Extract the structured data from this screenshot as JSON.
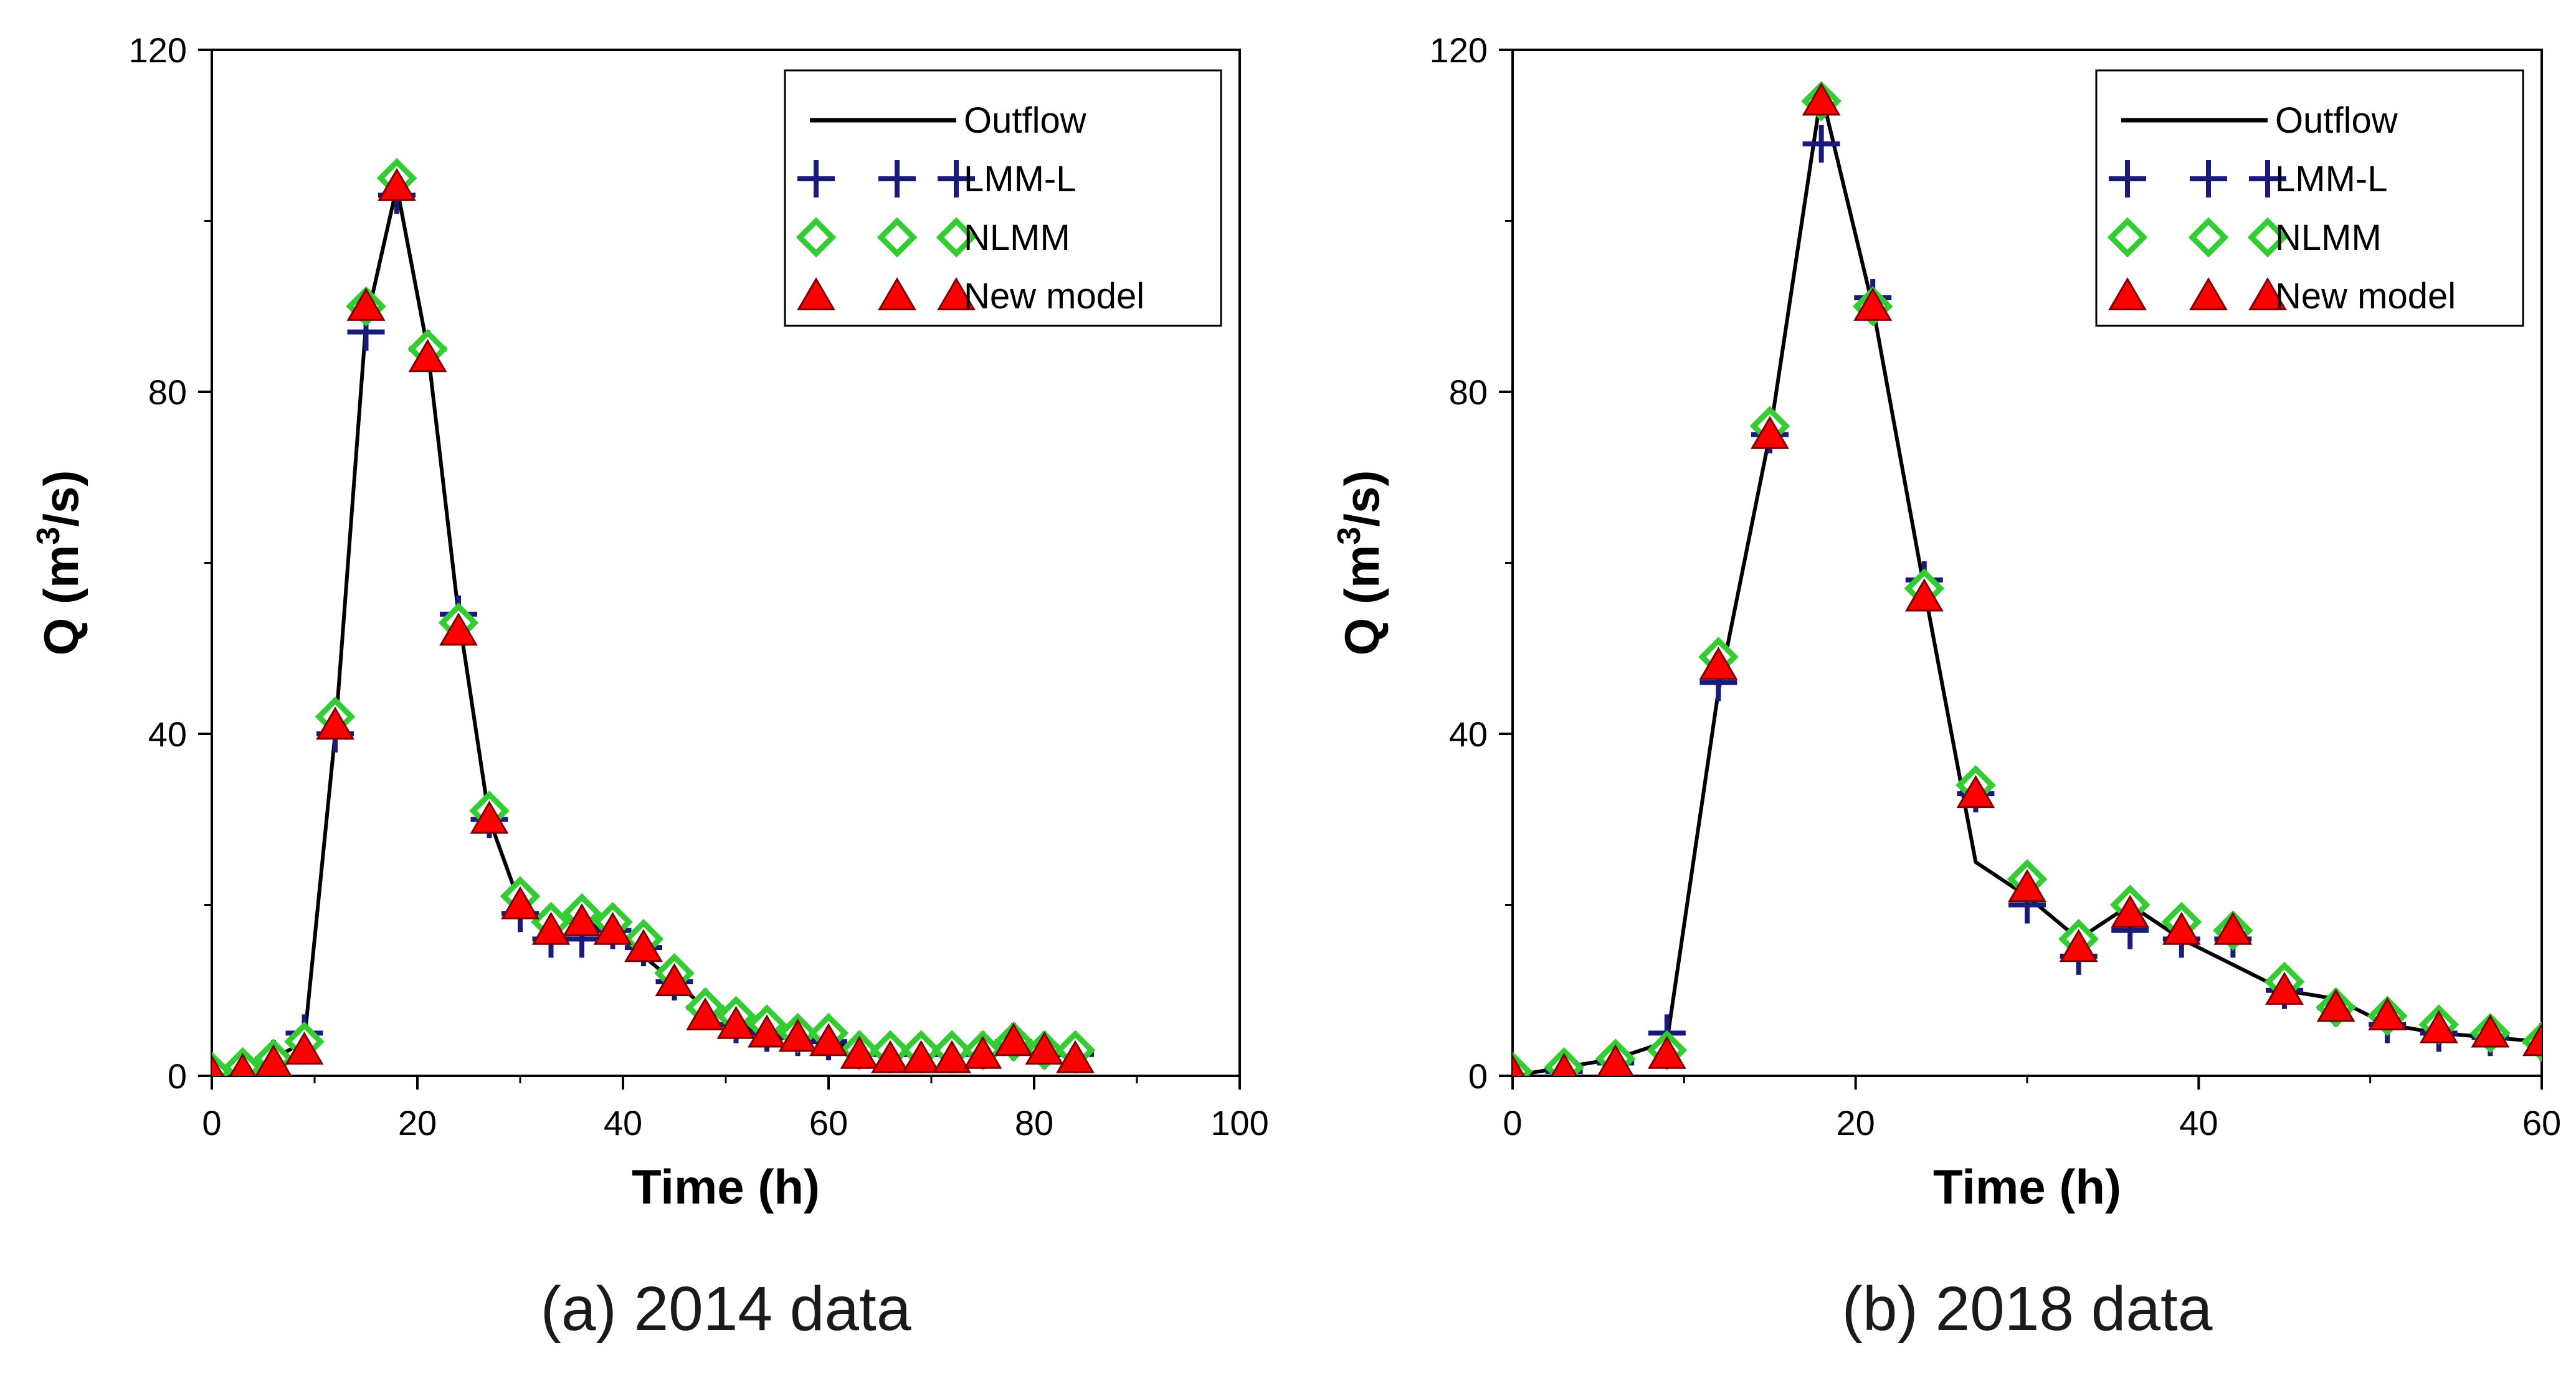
{
  "chart_data": [
    {
      "type": "line",
      "caption": "(a) 2014 data",
      "xlabel": "Time (h)",
      "ylabel_main": "Q (m",
      "ylabel_sup": "3",
      "ylabel_tail": "/s)",
      "xlim": [
        0,
        100
      ],
      "ylim": [
        0,
        120
      ],
      "xticks": [
        0,
        20,
        40,
        60,
        80,
        100
      ],
      "yticks": [
        0,
        40,
        80,
        120
      ],
      "grid": false,
      "legend_position": "top-right",
      "series": [
        {
          "name": "Outflow",
          "style": "line",
          "color": "#000000",
          "x": [
            0,
            3,
            6,
            9,
            12,
            15,
            18,
            21,
            24,
            27,
            30,
            33,
            36,
            39,
            42,
            45,
            48,
            51,
            54,
            57,
            60,
            63,
            66,
            69,
            72,
            75,
            78,
            81,
            84
          ],
          "y": [
            0,
            0.5,
            2,
            4,
            40,
            88,
            104,
            85,
            54,
            30,
            20,
            18,
            18,
            17,
            14,
            11,
            8,
            6,
            5,
            4.5,
            4,
            3,
            2.5,
            2.5,
            3,
            3.5,
            4,
            3,
            2.5
          ]
        },
        {
          "name": "LMM-L",
          "style": "plus",
          "color": "#1a1a7a",
          "x": [
            0,
            3,
            6,
            9,
            12,
            15,
            18,
            21,
            24,
            27,
            30,
            33,
            36,
            39,
            42,
            45,
            48,
            51,
            54,
            57,
            60,
            63,
            66,
            69,
            72,
            75,
            78,
            81,
            84
          ],
          "y": [
            0.3,
            0.5,
            2,
            5,
            40,
            87,
            103,
            85,
            54,
            30,
            19,
            16,
            16,
            17,
            15,
            11,
            8,
            6,
            5,
            4.5,
            4,
            3,
            2.5,
            2.5,
            2.5,
            3,
            4,
            3,
            2.5
          ]
        },
        {
          "name": "NLMM",
          "style": "diamond",
          "color": "#33cc33",
          "x": [
            0,
            3,
            6,
            9,
            12,
            15,
            18,
            21,
            24,
            27,
            30,
            33,
            36,
            39,
            42,
            45,
            48,
            51,
            54,
            57,
            60,
            63,
            66,
            69,
            72,
            75,
            78,
            81,
            84
          ],
          "y": [
            0.5,
            1,
            2,
            4,
            42,
            90,
            105,
            85,
            53,
            31,
            21,
            18,
            19,
            18,
            16,
            12,
            8,
            7,
            6,
            5,
            5,
            3,
            3,
            3,
            3,
            3,
            4,
            3,
            3
          ]
        },
        {
          "name": "New model",
          "style": "triangle",
          "color": "#ff0000",
          "x": [
            0,
            3,
            6,
            9,
            12,
            15,
            18,
            21,
            24,
            27,
            30,
            33,
            36,
            39,
            42,
            45,
            48,
            51,
            54,
            57,
            60,
            63,
            66,
            69,
            72,
            75,
            78,
            81,
            84
          ],
          "y": [
            0.3,
            0.5,
            1.5,
            3,
            41,
            90,
            104,
            84,
            52,
            30,
            20,
            17,
            18,
            17,
            15,
            11,
            7,
            6,
            5,
            4.5,
            4,
            2.5,
            2,
            2,
            2,
            2.5,
            4,
            3,
            2
          ]
        }
      ]
    },
    {
      "type": "line",
      "caption": "(b) 2018 data",
      "xlabel": "Time (h)",
      "ylabel_main": "Q (m",
      "ylabel_sup": "3",
      "ylabel_tail": "/s)",
      "xlim": [
        0,
        60
      ],
      "ylim": [
        0,
        120
      ],
      "xticks": [
        0,
        20,
        40,
        60
      ],
      "yticks": [
        0,
        40,
        80,
        120
      ],
      "grid": false,
      "legend_position": "top-right",
      "series": [
        {
          "name": "Outflow",
          "style": "line",
          "color": "#000000",
          "x": [
            0,
            3,
            6,
            9,
            12,
            15,
            18,
            21,
            24,
            27,
            30,
            33,
            36,
            39,
            42,
            45,
            48,
            51,
            54,
            57,
            60
          ],
          "y": [
            0,
            1,
            2,
            4,
            45,
            75,
            115,
            90,
            57,
            25,
            21,
            16,
            20,
            16,
            13,
            10,
            9,
            6,
            5,
            4.5,
            4
          ]
        },
        {
          "name": "LMM-L",
          "style": "plus",
          "color": "#1a1a7a",
          "x": [
            0,
            3,
            6,
            9,
            12,
            15,
            18,
            21,
            24,
            27,
            30,
            33,
            36,
            39,
            42,
            45,
            48,
            51,
            54,
            57,
            60
          ],
          "y": [
            0.3,
            0.5,
            1.5,
            5,
            46,
            75,
            109,
            91,
            58,
            33,
            20,
            14,
            17,
            16,
            16,
            10,
            8,
            6,
            5,
            4.5,
            4
          ]
        },
        {
          "name": "NLMM",
          "style": "diamond",
          "color": "#33cc33",
          "x": [
            0,
            3,
            6,
            9,
            12,
            15,
            18,
            21,
            24,
            27,
            30,
            33,
            36,
            39,
            42,
            45,
            48,
            51,
            54,
            57,
            60
          ],
          "y": [
            0.5,
            1,
            2,
            3,
            49,
            76,
            114,
            90,
            57,
            34,
            23,
            16,
            20,
            18,
            17,
            11,
            8,
            7,
            6,
            5,
            4
          ]
        },
        {
          "name": "New model",
          "style": "triangle",
          "color": "#ff0000",
          "x": [
            0,
            3,
            6,
            9,
            12,
            15,
            18,
            21,
            24,
            27,
            30,
            33,
            36,
            39,
            42,
            45,
            48,
            51,
            54,
            57,
            60
          ],
          "y": [
            0.3,
            0.5,
            1.5,
            2.5,
            48,
            75,
            114,
            90,
            56,
            33,
            22,
            15,
            19,
            17,
            17,
            10,
            8,
            7,
            5.5,
            5,
            4
          ]
        }
      ]
    }
  ]
}
